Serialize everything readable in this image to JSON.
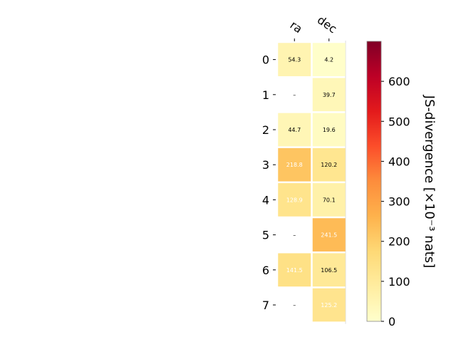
{
  "chart_data": {
    "type": "heatmap",
    "columns": [
      "ra",
      "dec"
    ],
    "rows": [
      "0",
      "1",
      "2",
      "3",
      "4",
      "5",
      "6",
      "7"
    ],
    "values": [
      [
        54.3,
        4.2
      ],
      [
        null,
        39.7
      ],
      [
        44.7,
        19.6
      ],
      [
        218.8,
        120.2
      ],
      [
        128.9,
        70.1
      ],
      [
        null,
        241.5
      ],
      [
        141.5,
        106.5
      ],
      [
        null,
        125.2
      ]
    ],
    "cell_labels": [
      [
        "54.3",
        "4.2"
      ],
      [
        "–",
        "39.7"
      ],
      [
        "44.7",
        "19.6"
      ],
      [
        "218.8",
        "120.2"
      ],
      [
        "128.9",
        "70.1"
      ],
      [
        "–",
        "241.5"
      ],
      [
        "141.5",
        "106.5"
      ],
      [
        "–",
        "125.2"
      ]
    ],
    "colorbar": {
      "label": "JS-divergence [×10⁻³ nats]",
      "range": [
        0,
        700
      ],
      "ticks": [
        0,
        100,
        200,
        300,
        400,
        500,
        600
      ],
      "tick_labels": [
        "0",
        "100",
        "200",
        "300",
        "400",
        "500",
        "600"
      ],
      "colormap": "YlOrRd"
    },
    "missing_color": "#ffffff",
    "grid": false
  }
}
